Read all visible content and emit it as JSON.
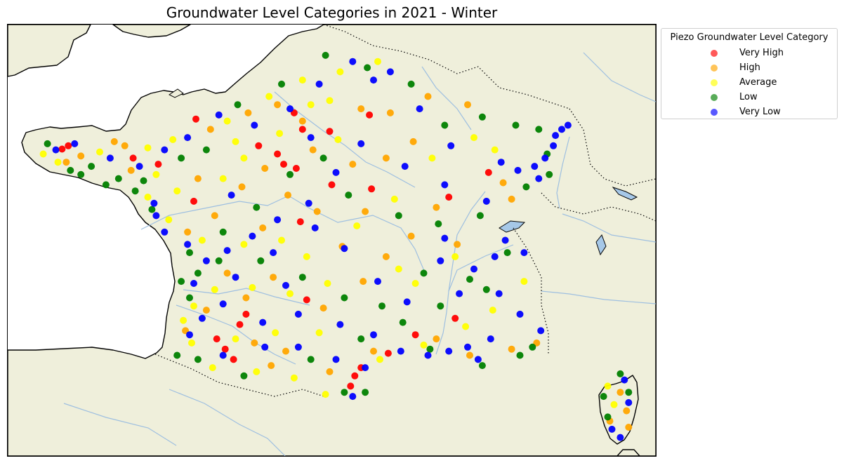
{
  "title": "Groundwater Level Categories in 2021 - Winter",
  "map": {
    "land_color": "#efefdb",
    "sea_color": "#ffffff",
    "coast_color": "#000000",
    "river_color": "#9ebfe0",
    "border_style": "dotted"
  },
  "legend": {
    "title": "Piezo Groundwater Level Category",
    "placement": "outside-upper-right",
    "items": [
      {
        "label": "Very High",
        "color": "#ff0000"
      },
      {
        "label": "High",
        "color": "#ffa500"
      },
      {
        "label": "Average",
        "color": "#ffff00"
      },
      {
        "label": "Low",
        "color": "#008000"
      },
      {
        "label": "Very Low",
        "color": "#0000ff"
      }
    ]
  },
  "chart_data": {
    "type": "scatter",
    "title": "Groundwater Level Categories in 2021 - Winter",
    "legend_title": "Piezo Groundwater Level Category",
    "xlim": [
      -5.5,
      10.0
    ],
    "ylim": [
      41.0,
      51.5
    ],
    "series": [
      {
        "name": "Very High",
        "color": "#ff0000",
        "points": [
          [
            -4.2,
            48.47
          ],
          [
            -4.05,
            48.55
          ],
          [
            -2.5,
            48.25
          ],
          [
            -1.9,
            48.1
          ],
          [
            -1.05,
            47.2
          ],
          [
            0.5,
            48.55
          ],
          [
            0.95,
            48.35
          ],
          [
            1.1,
            48.1
          ],
          [
            1.4,
            48.0
          ],
          [
            1.55,
            48.95
          ],
          [
            1.35,
            49.35
          ],
          [
            2.2,
            48.9
          ],
          [
            3.2,
            47.5
          ],
          [
            2.25,
            47.6
          ],
          [
            1.5,
            46.7
          ],
          [
            5.05,
            47.3
          ],
          [
            6.0,
            47.9
          ],
          [
            0.2,
            44.45
          ],
          [
            0.05,
            44.2
          ],
          [
            -0.5,
            43.85
          ],
          [
            -0.3,
            43.6
          ],
          [
            -0.1,
            43.35
          ],
          [
            2.8,
            42.95
          ],
          [
            2.7,
            42.7
          ],
          [
            2.95,
            43.15
          ],
          [
            4.25,
            43.95
          ],
          [
            3.6,
            43.5
          ],
          [
            -1.0,
            49.2
          ],
          [
            3.15,
            49.3
          ],
          [
            1.65,
            44.8
          ],
          [
            5.2,
            44.35
          ]
        ]
      },
      {
        "name": "High",
        "color": "#ffa500",
        "points": [
          [
            -2.95,
            48.65
          ],
          [
            -2.7,
            48.55
          ],
          [
            -4.1,
            48.15
          ],
          [
            -3.75,
            48.3
          ],
          [
            -2.55,
            47.95
          ],
          [
            -0.65,
            48.95
          ],
          [
            0.25,
            49.35
          ],
          [
            0.95,
            49.55
          ],
          [
            1.55,
            49.15
          ],
          [
            2.95,
            49.45
          ],
          [
            3.65,
            49.35
          ],
          [
            4.55,
            49.75
          ],
          [
            5.5,
            49.55
          ],
          [
            4.2,
            48.65
          ],
          [
            3.55,
            48.25
          ],
          [
            2.75,
            48.1
          ],
          [
            1.8,
            48.45
          ],
          [
            0.65,
            48.0
          ],
          [
            1.2,
            47.35
          ],
          [
            0.1,
            47.55
          ],
          [
            -0.95,
            47.75
          ],
          [
            -0.55,
            46.85
          ],
          [
            -1.2,
            46.45
          ],
          [
            0.6,
            46.55
          ],
          [
            1.9,
            46.95
          ],
          [
            3.05,
            46.95
          ],
          [
            2.5,
            46.1
          ],
          [
            3.55,
            45.85
          ],
          [
            4.75,
            47.05
          ],
          [
            6.35,
            47.65
          ],
          [
            6.55,
            47.25
          ],
          [
            4.15,
            46.35
          ],
          [
            5.25,
            46.15
          ],
          [
            3.0,
            45.25
          ],
          [
            2.05,
            44.6
          ],
          [
            0.85,
            45.35
          ],
          [
            -0.25,
            45.45
          ],
          [
            0.2,
            44.85
          ],
          [
            -0.75,
            44.55
          ],
          [
            -1.25,
            44.05
          ],
          [
            0.4,
            43.75
          ],
          [
            1.15,
            43.55
          ],
          [
            0.8,
            43.2
          ],
          [
            2.2,
            43.05
          ],
          [
            3.25,
            43.55
          ],
          [
            4.75,
            43.85
          ],
          [
            5.55,
            43.45
          ],
          [
            7.15,
            43.75
          ],
          [
            6.55,
            43.6
          ],
          [
            9.15,
            42.55
          ],
          [
            9.3,
            42.1
          ],
          [
            8.9,
            41.85
          ],
          [
            9.35,
            41.7
          ]
        ]
      },
      {
        "name": "Average",
        "color": "#ffff00",
        "points": [
          [
            -4.65,
            48.35
          ],
          [
            -4.3,
            48.15
          ],
          [
            -3.3,
            48.4
          ],
          [
            -2.15,
            48.5
          ],
          [
            -1.55,
            48.7
          ],
          [
            -0.25,
            49.15
          ],
          [
            0.75,
            49.75
          ],
          [
            1.55,
            50.15
          ],
          [
            2.45,
            50.35
          ],
          [
            3.35,
            50.6
          ],
          [
            2.2,
            49.65
          ],
          [
            1.75,
            49.55
          ],
          [
            2.4,
            48.7
          ],
          [
            1.0,
            48.85
          ],
          [
            0.15,
            48.25
          ],
          [
            -0.35,
            47.75
          ],
          [
            -1.45,
            47.45
          ],
          [
            -2.15,
            47.3
          ],
          [
            -1.65,
            46.75
          ],
          [
            -0.85,
            46.25
          ],
          [
            0.15,
            46.15
          ],
          [
            1.05,
            46.25
          ],
          [
            1.65,
            45.85
          ],
          [
            2.85,
            46.6
          ],
          [
            3.75,
            47.25
          ],
          [
            4.65,
            48.25
          ],
          [
            5.65,
            48.75
          ],
          [
            6.15,
            48.45
          ],
          [
            5.2,
            45.85
          ],
          [
            3.85,
            45.55
          ],
          [
            2.15,
            45.2
          ],
          [
            1.25,
            44.95
          ],
          [
            0.35,
            45.1
          ],
          [
            -0.55,
            45.05
          ],
          [
            -1.05,
            44.65
          ],
          [
            -1.3,
            44.3
          ],
          [
            -1.1,
            43.75
          ],
          [
            -0.6,
            43.15
          ],
          [
            0.45,
            43.05
          ],
          [
            1.35,
            42.9
          ],
          [
            2.1,
            42.5
          ],
          [
            3.4,
            43.35
          ],
          [
            4.45,
            43.7
          ],
          [
            5.45,
            44.15
          ],
          [
            6.1,
            44.55
          ],
          [
            6.85,
            45.25
          ],
          [
            4.25,
            45.2
          ],
          [
            1.95,
            44.0
          ],
          [
            0.9,
            44.0
          ],
          [
            -0.05,
            43.85
          ],
          [
            8.85,
            42.7
          ],
          [
            9.0,
            42.25
          ],
          [
            -1.95,
            47.85
          ],
          [
            -0.05,
            48.65
          ]
        ]
      },
      {
        "name": "Low",
        "color": "#008000",
        "points": [
          [
            -4.55,
            48.6
          ],
          [
            -4.0,
            47.95
          ],
          [
            -3.5,
            48.05
          ],
          [
            -2.85,
            47.75
          ],
          [
            -2.25,
            47.7
          ],
          [
            -1.35,
            48.25
          ],
          [
            -0.75,
            48.45
          ],
          [
            0.0,
            49.55
          ],
          [
            1.05,
            50.05
          ],
          [
            2.1,
            50.75
          ],
          [
            3.1,
            50.45
          ],
          [
            4.15,
            50.05
          ],
          [
            4.95,
            49.05
          ],
          [
            5.85,
            49.25
          ],
          [
            6.65,
            49.05
          ],
          [
            7.4,
            48.35
          ],
          [
            7.45,
            47.85
          ],
          [
            7.2,
            48.95
          ],
          [
            6.9,
            47.55
          ],
          [
            5.8,
            46.85
          ],
          [
            4.8,
            46.65
          ],
          [
            3.85,
            46.85
          ],
          [
            2.65,
            47.35
          ],
          [
            2.05,
            48.25
          ],
          [
            1.25,
            47.85
          ],
          [
            0.45,
            47.05
          ],
          [
            -0.35,
            46.45
          ],
          [
            -1.15,
            45.95
          ],
          [
            -0.95,
            45.45
          ],
          [
            -0.45,
            45.75
          ],
          [
            0.55,
            45.75
          ],
          [
            1.55,
            45.35
          ],
          [
            2.55,
            44.85
          ],
          [
            3.45,
            44.65
          ],
          [
            4.45,
            45.45
          ],
          [
            5.55,
            45.3
          ],
          [
            6.45,
            45.95
          ],
          [
            5.95,
            45.05
          ],
          [
            4.85,
            44.65
          ],
          [
            3.95,
            44.25
          ],
          [
            2.95,
            43.85
          ],
          [
            1.75,
            43.35
          ],
          [
            0.15,
            42.95
          ],
          [
            -0.95,
            43.35
          ],
          [
            -1.45,
            43.45
          ],
          [
            -1.15,
            44.85
          ],
          [
            -1.35,
            45.25
          ],
          [
            -2.05,
            47.0
          ],
          [
            -2.45,
            47.45
          ],
          [
            -3.15,
            47.6
          ],
          [
            -3.75,
            47.85
          ],
          [
            3.05,
            42.55
          ],
          [
            2.55,
            42.55
          ],
          [
            4.6,
            43.6
          ],
          [
            5.85,
            43.2
          ],
          [
            6.75,
            43.45
          ],
          [
            7.05,
            43.65
          ],
          [
            8.75,
            42.45
          ],
          [
            8.85,
            41.95
          ],
          [
            9.35,
            42.55
          ],
          [
            9.15,
            43.0
          ]
        ]
      },
      {
        "name": "Very Low",
        "color": "#0000ff",
        "points": [
          [
            -4.35,
            48.45
          ],
          [
            -3.9,
            48.6
          ],
          [
            -3.05,
            48.25
          ],
          [
            -2.35,
            48.05
          ],
          [
            -1.75,
            48.45
          ],
          [
            -1.2,
            48.75
          ],
          [
            -0.45,
            49.3
          ],
          [
            0.4,
            49.05
          ],
          [
            1.25,
            49.45
          ],
          [
            1.95,
            50.05
          ],
          [
            2.75,
            50.6
          ],
          [
            3.65,
            50.35
          ],
          [
            4.35,
            49.45
          ],
          [
            5.1,
            48.55
          ],
          [
            6.3,
            48.15
          ],
          [
            7.1,
            48.05
          ],
          [
            7.55,
            48.55
          ],
          [
            7.75,
            48.95
          ],
          [
            7.9,
            49.05
          ],
          [
            7.6,
            48.8
          ],
          [
            7.35,
            48.25
          ],
          [
            7.2,
            47.75
          ],
          [
            6.7,
            47.95
          ],
          [
            5.95,
            47.2
          ],
          [
            4.95,
            47.6
          ],
          [
            4.0,
            48.05
          ],
          [
            2.95,
            48.6
          ],
          [
            2.35,
            47.9
          ],
          [
            1.7,
            47.15
          ],
          [
            0.95,
            46.75
          ],
          [
            0.35,
            46.35
          ],
          [
            -0.25,
            46.0
          ],
          [
            -0.75,
            45.75
          ],
          [
            -1.2,
            46.15
          ],
          [
            -1.75,
            46.45
          ],
          [
            -1.95,
            46.85
          ],
          [
            -2.0,
            47.15
          ],
          [
            -1.05,
            45.2
          ],
          [
            -0.35,
            44.7
          ],
          [
            0.6,
            44.25
          ],
          [
            1.45,
            44.45
          ],
          [
            2.45,
            44.2
          ],
          [
            3.25,
            43.95
          ],
          [
            3.9,
            43.55
          ],
          [
            4.55,
            43.45
          ],
          [
            5.05,
            43.55
          ],
          [
            5.5,
            43.65
          ],
          [
            5.3,
            44.95
          ],
          [
            4.85,
            45.75
          ],
          [
            4.95,
            46.3
          ],
          [
            5.65,
            45.55
          ],
          [
            6.15,
            45.85
          ],
          [
            6.4,
            46.25
          ],
          [
            6.85,
            45.95
          ],
          [
            6.25,
            44.95
          ],
          [
            6.75,
            44.45
          ],
          [
            7.25,
            44.05
          ],
          [
            6.05,
            43.85
          ],
          [
            5.75,
            43.35
          ],
          [
            4.05,
            44.75
          ],
          [
            3.35,
            45.25
          ],
          [
            2.55,
            46.05
          ],
          [
            1.85,
            46.55
          ],
          [
            0.85,
            45.95
          ],
          [
            -0.05,
            45.35
          ],
          [
            -0.85,
            44.35
          ],
          [
            -1.15,
            43.95
          ],
          [
            -0.35,
            43.45
          ],
          [
            0.65,
            43.65
          ],
          [
            1.45,
            43.65
          ],
          [
            2.35,
            43.35
          ],
          [
            3.05,
            43.15
          ],
          [
            2.75,
            42.45
          ],
          [
            8.95,
            41.65
          ],
          [
            9.35,
            42.3
          ],
          [
            9.25,
            42.85
          ],
          [
            9.15,
            41.45
          ],
          [
            3.25,
            50.15
          ],
          [
            1.75,
            48.75
          ],
          [
            -0.15,
            47.35
          ],
          [
            1.15,
            45.15
          ]
        ]
      }
    ]
  }
}
